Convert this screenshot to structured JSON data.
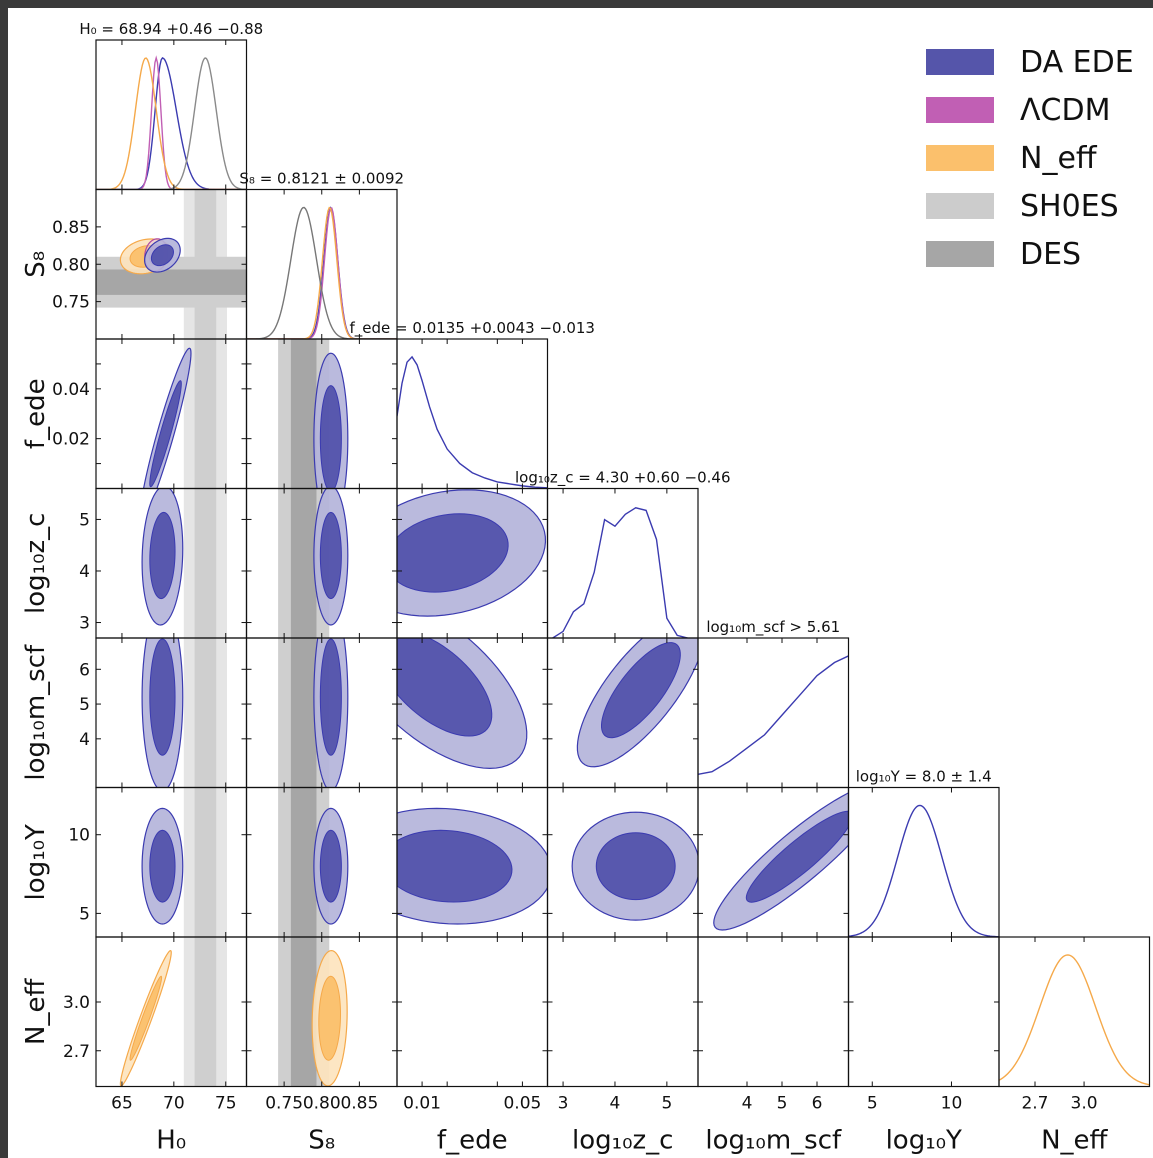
{
  "chart_data": {
    "type": "corner",
    "parameters": [
      {
        "key": "H0",
        "axis_label": "H₀",
        "ticks": [
          65,
          70,
          75
        ],
        "tick_labels": [
          "65",
          "70",
          "75"
        ],
        "range": [
          62.5,
          77
        ],
        "title": "H₀ = 68.94 +0.46 −0.88"
      },
      {
        "key": "S8",
        "axis_label": "S₈",
        "ticks": [
          0.75,
          0.8,
          0.85
        ],
        "tick_labels": [
          "0.75",
          "0.80",
          "0.85"
        ],
        "range": [
          0.7,
          0.9
        ],
        "title": "S₈ = 0.8121 ± 0.0092"
      },
      {
        "key": "fede",
        "axis_label": "f_ede",
        "ticks": [
          0.01,
          0.02,
          0.04,
          0.05
        ],
        "tick_labels": [
          "0.01",
          "0.02",
          "0.04",
          "0.05"
        ],
        "range": [
          0.0,
          0.06
        ],
        "title": "f_ede = 0.0135 +0.0043 −0.013"
      },
      {
        "key": "log10zc",
        "axis_label": "log₁₀z_c",
        "ticks": [
          3,
          4,
          5
        ],
        "tick_labels": [
          "3",
          "4",
          "5"
        ],
        "range": [
          2.7,
          5.6
        ],
        "title": "log₁₀z_c = 4.30 +0.60 −0.46"
      },
      {
        "key": "log10mscf",
        "axis_label": "log₁₀m_scf",
        "ticks": [
          4,
          5,
          6
        ],
        "tick_labels": [
          "4",
          "5",
          "6"
        ],
        "range": [
          2.6,
          6.9
        ],
        "title": "log₁₀m_scf > 5.61"
      },
      {
        "key": "log10Y",
        "axis_label": "log₁₀Y",
        "ticks": [
          5,
          10
        ],
        "tick_labels": [
          "5",
          "10"
        ],
        "range": [
          3.5,
          13.0
        ],
        "title": "log₁₀Y = 8.0 ± 1.4"
      },
      {
        "key": "Neff",
        "axis_label": "N_eff",
        "ticks": [
          2.7,
          3.0
        ],
        "tick_labels": [
          "2.7",
          "3.0"
        ],
        "range": [
          2.48,
          3.4
        ],
        "title": ""
      }
    ],
    "legend": [
      {
        "name": "DA EDE",
        "color": "#5555aa"
      },
      {
        "name": "ΛCDM",
        "color": "#c15fb4"
      },
      {
        "name": "N_eff",
        "color": "#fbc06c"
      },
      {
        "name": "SH0ES",
        "color": "#cccccc"
      },
      {
        "name": "DES",
        "color": "#a6a6a6"
      }
    ],
    "legend_position": "top-right",
    "bands": {
      "SH0ES_H0": {
        "mean": 73.04,
        "sigma": 1.04
      },
      "DES_S8": {
        "mean": 0.776,
        "sigma": 0.017
      }
    },
    "posteriors_1d": {
      "H0": [
        {
          "series": "DA EDE",
          "color": "#3b3bb0",
          "mean": 68.9,
          "sigma": 0.7,
          "skew_high": 1.9
        },
        {
          "series": "ΛCDM",
          "color": "#c15fb4",
          "mean": 68.3,
          "sigma": 0.45
        },
        {
          "series": "N_eff",
          "color": "#f5a94a",
          "mean": 67.3,
          "sigma": 1.0
        },
        {
          "series": "SH0ES",
          "color": "#8a8a8a",
          "mean": 73.04,
          "sigma": 1.04
        }
      ],
      "S8": [
        {
          "series": "DA EDE",
          "color": "#3b3bb0",
          "mean": 0.8121,
          "sigma": 0.0092
        },
        {
          "series": "ΛCDM",
          "color": "#c15fb4",
          "mean": 0.8125,
          "sigma": 0.0088
        },
        {
          "series": "N_eff",
          "color": "#f5a94a",
          "mean": 0.8105,
          "sigma": 0.0095
        },
        {
          "series": "DES",
          "color": "#777777",
          "mean": 0.776,
          "sigma": 0.017
        }
      ],
      "fede": [
        {
          "series": "DA EDE",
          "color": "#3b3bb0",
          "x": [
            0.0,
            0.002,
            0.004,
            0.006,
            0.008,
            0.01,
            0.013,
            0.016,
            0.02,
            0.025,
            0.03,
            0.035,
            0.04,
            0.045,
            0.05,
            0.055,
            0.06
          ],
          "y": [
            0.55,
            0.8,
            0.96,
            1.0,
            0.94,
            0.82,
            0.62,
            0.45,
            0.3,
            0.19,
            0.12,
            0.08,
            0.05,
            0.035,
            0.02,
            0.01,
            0.005
          ]
        }
      ],
      "log10zc": [
        {
          "series": "DA EDE",
          "color": "#3b3bb0",
          "x": [
            2.8,
            3.0,
            3.2,
            3.4,
            3.6,
            3.8,
            4.0,
            4.2,
            4.4,
            4.6,
            4.8,
            5.0,
            5.2,
            5.4
          ],
          "y": [
            0.0,
            0.05,
            0.2,
            0.26,
            0.5,
            0.9,
            0.85,
            0.94,
            0.99,
            0.97,
            0.75,
            0.15,
            0.02,
            0.0
          ]
        }
      ],
      "log10mscf": [
        {
          "series": "DA EDE",
          "color": "#3b3bb0",
          "x": [
            2.6,
            3.0,
            3.5,
            4.0,
            4.5,
            5.0,
            5.5,
            6.0,
            6.5,
            6.9
          ],
          "y": [
            0.1,
            0.12,
            0.2,
            0.3,
            0.4,
            0.55,
            0.7,
            0.85,
            0.95,
            1.0
          ]
        }
      ],
      "log10Y": [
        {
          "series": "DA EDE",
          "color": "#3b3bb0",
          "mean": 8.0,
          "sigma": 1.4
        }
      ],
      "Neff": [
        {
          "series": "N_eff",
          "color": "#f5a94a",
          "mean": 2.9,
          "sigma": 0.17
        }
      ]
    },
    "contours_2d": [
      {
        "panel": [
          "H0",
          "S8"
        ],
        "series": "N_eff",
        "color": "#fbc06c",
        "center": [
          67.3,
          0.8105
        ],
        "sigma": [
          1.0,
          0.0095
        ],
        "rho": 0.2
      },
      {
        "panel": [
          "H0",
          "S8"
        ],
        "series": "ΛCDM",
        "color": "#c15fb4",
        "center": [
          68.3,
          0.8125
        ],
        "sigma": [
          0.45,
          0.0088
        ],
        "rho": 0.1
      },
      {
        "panel": [
          "H0",
          "S8"
        ],
        "series": "DA EDE",
        "color": "#5555aa",
        "center": [
          68.9,
          0.8121
        ],
        "sigma": [
          0.7,
          0.0092
        ],
        "rho": 0.3
      },
      {
        "panel": [
          "H0",
          "fede"
        ],
        "series": "DA EDE",
        "color": "#5555aa",
        "center": [
          69.2,
          0.022
        ],
        "sigma": [
          1.0,
          0.014
        ],
        "rho": 0.94
      },
      {
        "panel": [
          "H0",
          "log10zc"
        ],
        "series": "DA EDE",
        "color": "#5555aa",
        "center": [
          68.9,
          4.3
        ],
        "sigma": [
          0.8,
          0.55
        ],
        "rho": 0.1
      },
      {
        "panel": [
          "H0",
          "log10mscf"
        ],
        "series": "DA EDE",
        "color": "#5555aa",
        "center": [
          68.9,
          5.2
        ],
        "sigma": [
          0.8,
          1.1
        ],
        "rho": 0.0
      },
      {
        "panel": [
          "H0",
          "log10Y"
        ],
        "series": "DA EDE",
        "color": "#5555aa",
        "center": [
          68.9,
          8.0
        ],
        "sigma": [
          0.8,
          1.5
        ],
        "rho": 0.0
      },
      {
        "panel": [
          "H0",
          "Neff"
        ],
        "series": "N_eff",
        "color": "#fbc06c",
        "center": [
          67.3,
          2.9
        ],
        "sigma": [
          1.0,
          0.17
        ],
        "rho": 0.97
      },
      {
        "panel": [
          "S8",
          "fede"
        ],
        "series": "DA EDE",
        "color": "#5555aa",
        "center": [
          0.8121,
          0.02
        ],
        "sigma": [
          0.0092,
          0.014
        ],
        "rho": 0.0
      },
      {
        "panel": [
          "S8",
          "log10zc"
        ],
        "series": "DA EDE",
        "color": "#5555aa",
        "center": [
          0.8121,
          4.3
        ],
        "sigma": [
          0.0092,
          0.55
        ],
        "rho": 0.0
      },
      {
        "panel": [
          "S8",
          "log10mscf"
        ],
        "series": "DA EDE",
        "color": "#5555aa",
        "center": [
          0.8121,
          5.2
        ],
        "sigma": [
          0.0092,
          1.1
        ],
        "rho": 0.0
      },
      {
        "panel": [
          "S8",
          "log10Y"
        ],
        "series": "DA EDE",
        "color": "#5555aa",
        "center": [
          0.8121,
          8.0
        ],
        "sigma": [
          0.0092,
          1.5
        ],
        "rho": 0.0
      },
      {
        "panel": [
          "S8",
          "Neff"
        ],
        "series": "N_eff",
        "color": "#fbc06c",
        "center": [
          0.8105,
          2.9
        ],
        "sigma": [
          0.0095,
          0.17
        ],
        "rho": 0.1
      },
      {
        "panel": [
          "fede",
          "log10zc"
        ],
        "series": "DA EDE",
        "color": "#5555aa",
        "center": [
          0.02,
          4.35
        ],
        "sigma": [
          0.016,
          0.5
        ],
        "rho": 0.2
      },
      {
        "panel": [
          "fede",
          "log10mscf"
        ],
        "series": "DA EDE",
        "color": "#5555aa",
        "center": [
          0.015,
          5.6
        ],
        "sigma": [
          0.015,
          1.0
        ],
        "rho": -0.6
      },
      {
        "panel": [
          "fede",
          "log10Y"
        ],
        "series": "DA EDE",
        "color": "#5555aa",
        "center": [
          0.02,
          8.0
        ],
        "sigma": [
          0.017,
          1.5
        ],
        "rho": -0.1
      },
      {
        "panel": [
          "log10zc",
          "log10mscf"
        ],
        "series": "DA EDE",
        "color": "#5555aa",
        "center": [
          4.5,
          5.4
        ],
        "sigma": [
          0.5,
          0.9
        ],
        "rho": 0.75
      },
      {
        "panel": [
          "log10zc",
          "log10Y"
        ],
        "series": "DA EDE",
        "color": "#5555aa",
        "center": [
          4.4,
          8.0
        ],
        "sigma": [
          0.5,
          1.4
        ],
        "rho": 0.0
      },
      {
        "panel": [
          "log10mscf",
          "log10Y"
        ],
        "series": "DA EDE",
        "color": "#5555aa",
        "center": [
          5.5,
          8.6
        ],
        "sigma": [
          1.0,
          1.9
        ],
        "rho": 0.9
      }
    ]
  }
}
